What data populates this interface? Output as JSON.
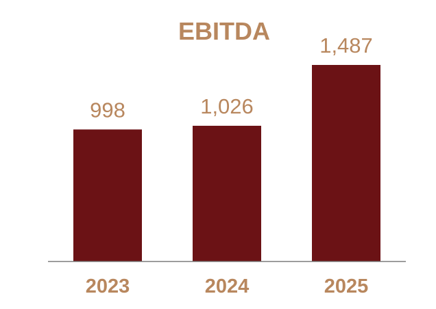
{
  "chart_data": {
    "type": "bar",
    "title": "EBITDA",
    "categories": [
      "2023",
      "2024",
      "2025"
    ],
    "values": [
      998,
      1026,
      1487
    ],
    "value_labels": [
      "998",
      "1,026",
      "1,487"
    ],
    "xlabel": "",
    "ylabel": "",
    "ylim": [
      0,
      1487
    ],
    "grid": false,
    "legend": "none",
    "colors": {
      "bar": "#6b1215",
      "text": "#b8875e",
      "axis": "#7a7a7a"
    }
  }
}
